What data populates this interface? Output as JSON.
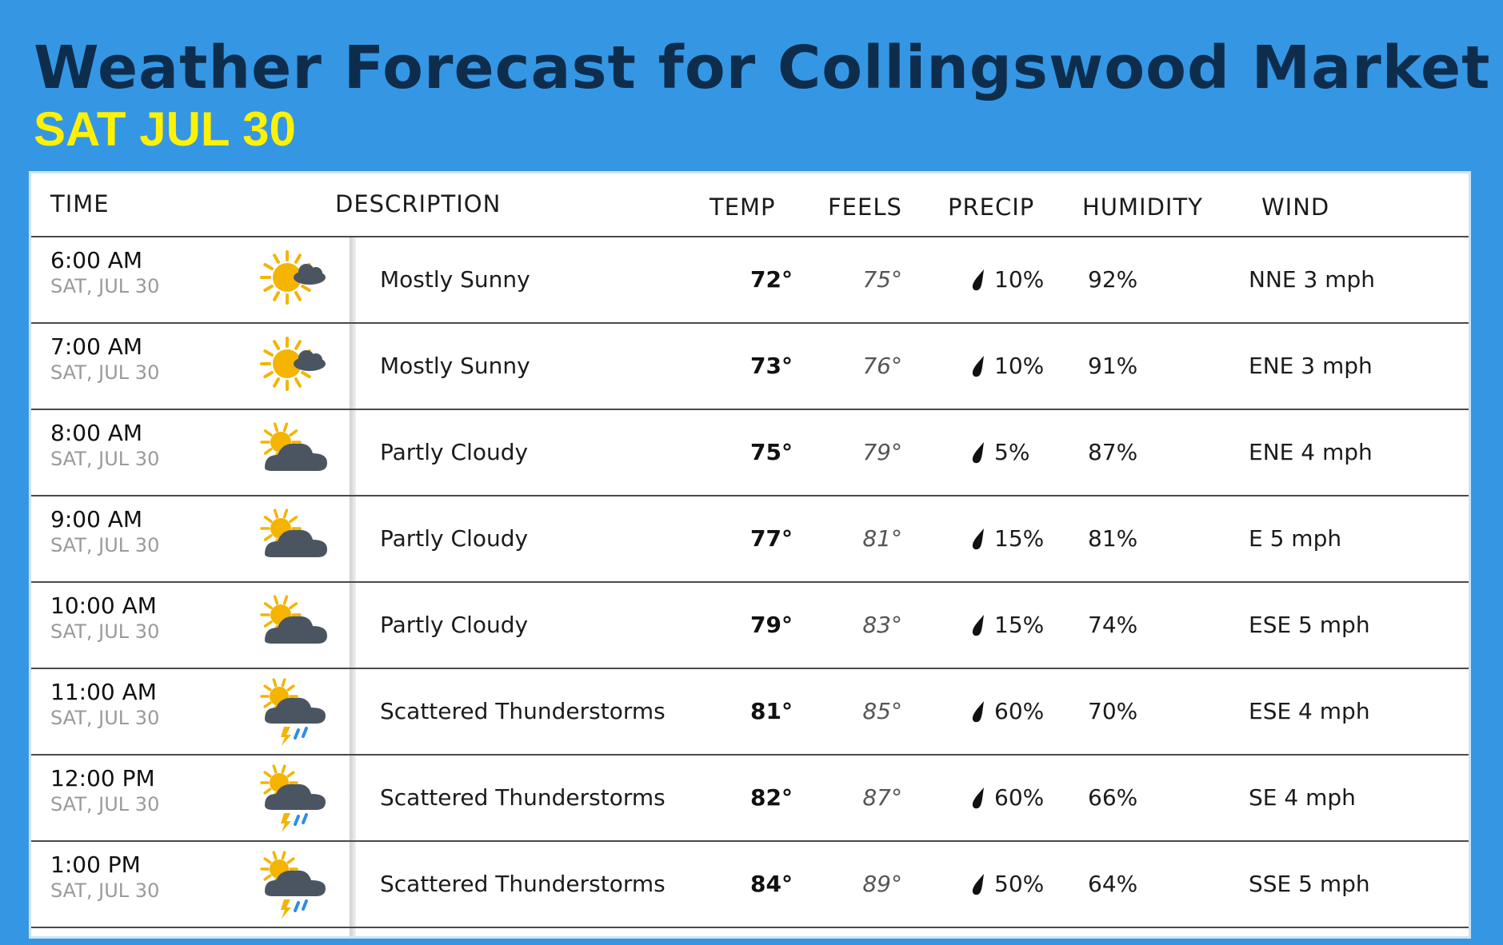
{
  "page": {
    "title": "Weather Forecast for Collingswood Market",
    "subtitle": "SAT JUL 30"
  },
  "table": {
    "columns": {
      "time": "TIME",
      "description": "DESCRIPTION",
      "temp": "TEMP",
      "feels": "FEELS",
      "precip": "PRECIP",
      "humidity": "HUMIDITY",
      "wind": "WIND"
    },
    "rows": [
      {
        "time": "6:00 AM",
        "date": "SAT, JUL 30",
        "icon": "mostly-sunny-icon",
        "description": "Mostly Sunny",
        "temp": "72°",
        "feels": "75°",
        "precip": "10%",
        "humidity": "92%",
        "wind": "NNE 3 mph"
      },
      {
        "time": "7:00 AM",
        "date": "SAT, JUL 30",
        "icon": "mostly-sunny-icon",
        "description": "Mostly Sunny",
        "temp": "73°",
        "feels": "76°",
        "precip": "10%",
        "humidity": "91%",
        "wind": "ENE 3 mph"
      },
      {
        "time": "8:00 AM",
        "date": "SAT, JUL 30",
        "icon": "partly-cloudy-icon",
        "description": "Partly Cloudy",
        "temp": "75°",
        "feels": "79°",
        "precip": "5%",
        "humidity": "87%",
        "wind": "ENE 4 mph"
      },
      {
        "time": "9:00 AM",
        "date": "SAT, JUL 30",
        "icon": "partly-cloudy-icon",
        "description": "Partly Cloudy",
        "temp": "77°",
        "feels": "81°",
        "precip": "15%",
        "humidity": "81%",
        "wind": "E 5 mph"
      },
      {
        "time": "10:00 AM",
        "date": "SAT, JUL 30",
        "icon": "partly-cloudy-icon",
        "description": "Partly Cloudy",
        "temp": "79°",
        "feels": "83°",
        "precip": "15%",
        "humidity": "74%",
        "wind": "ESE 5 mph"
      },
      {
        "time": "11:00 AM",
        "date": "SAT, JUL 30",
        "icon": "scattered-thunderstorms-icon",
        "description": "Scattered Thunderstorms",
        "temp": "81°",
        "feels": "85°",
        "precip": "60%",
        "humidity": "70%",
        "wind": "ESE 4 mph"
      },
      {
        "time": "12:00 PM",
        "date": "SAT, JUL 30",
        "icon": "scattered-thunderstorms-icon",
        "description": "Scattered Thunderstorms",
        "temp": "82°",
        "feels": "87°",
        "precip": "60%",
        "humidity": "66%",
        "wind": "SE 4 mph"
      },
      {
        "time": "1:00 PM",
        "date": "SAT, JUL 30",
        "icon": "scattered-thunderstorms-icon",
        "description": "Scattered Thunderstorms",
        "temp": "84°",
        "feels": "89°",
        "precip": "50%",
        "humidity": "64%",
        "wind": "SSE 5 mph"
      }
    ]
  },
  "colors": {
    "background": "#3597e4",
    "title": "#0e2d4d",
    "subtitle": "#fff200",
    "sun": "#f4b400",
    "cloud": "#4b5561",
    "rain": "#2f8de4"
  }
}
